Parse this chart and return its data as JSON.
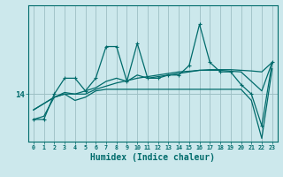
{
  "background_color": "#cce8ec",
  "grid_color": "#9dbfc4",
  "line_color": "#006b6b",
  "xlabel": "Humidex (Indice chaleur)",
  "xlabel_fontsize": 7,
  "ytick_label": "14",
  "ytick_value": 14,
  "xlim": [
    -0.5,
    23.5
  ],
  "ylim": [
    12.5,
    16.8
  ],
  "x": [
    0,
    1,
    2,
    3,
    4,
    5,
    6,
    7,
    8,
    9,
    10,
    11,
    12,
    13,
    14,
    15,
    16,
    17,
    18,
    19,
    20,
    21,
    22,
    23
  ],
  "line1": [
    13.2,
    13.2,
    14.0,
    14.5,
    14.5,
    14.1,
    14.5,
    15.5,
    15.5,
    14.4,
    15.6,
    14.5,
    14.5,
    14.6,
    14.6,
    14.9,
    16.2,
    15.0,
    14.7,
    14.7,
    14.3,
    14.0,
    13.0,
    15.0
  ],
  "line2": [
    13.5,
    13.7,
    13.9,
    14.0,
    14.0,
    14.0,
    14.15,
    14.25,
    14.35,
    14.42,
    14.5,
    14.55,
    14.6,
    14.65,
    14.7,
    14.72,
    14.75,
    14.77,
    14.77,
    14.77,
    14.75,
    14.73,
    14.7,
    15.0
  ],
  "line3": [
    13.5,
    13.7,
    13.9,
    14.05,
    14.0,
    14.1,
    14.2,
    14.4,
    14.5,
    14.4,
    14.6,
    14.5,
    14.55,
    14.6,
    14.65,
    14.7,
    14.75,
    14.75,
    14.75,
    14.72,
    14.7,
    14.4,
    14.1,
    15.0
  ],
  "line4": [
    13.2,
    13.3,
    13.9,
    14.0,
    13.8,
    13.9,
    14.1,
    14.15,
    14.15,
    14.15,
    14.15,
    14.15,
    14.15,
    14.15,
    14.15,
    14.15,
    14.15,
    14.15,
    14.15,
    14.15,
    14.15,
    13.8,
    12.6,
    14.8
  ]
}
